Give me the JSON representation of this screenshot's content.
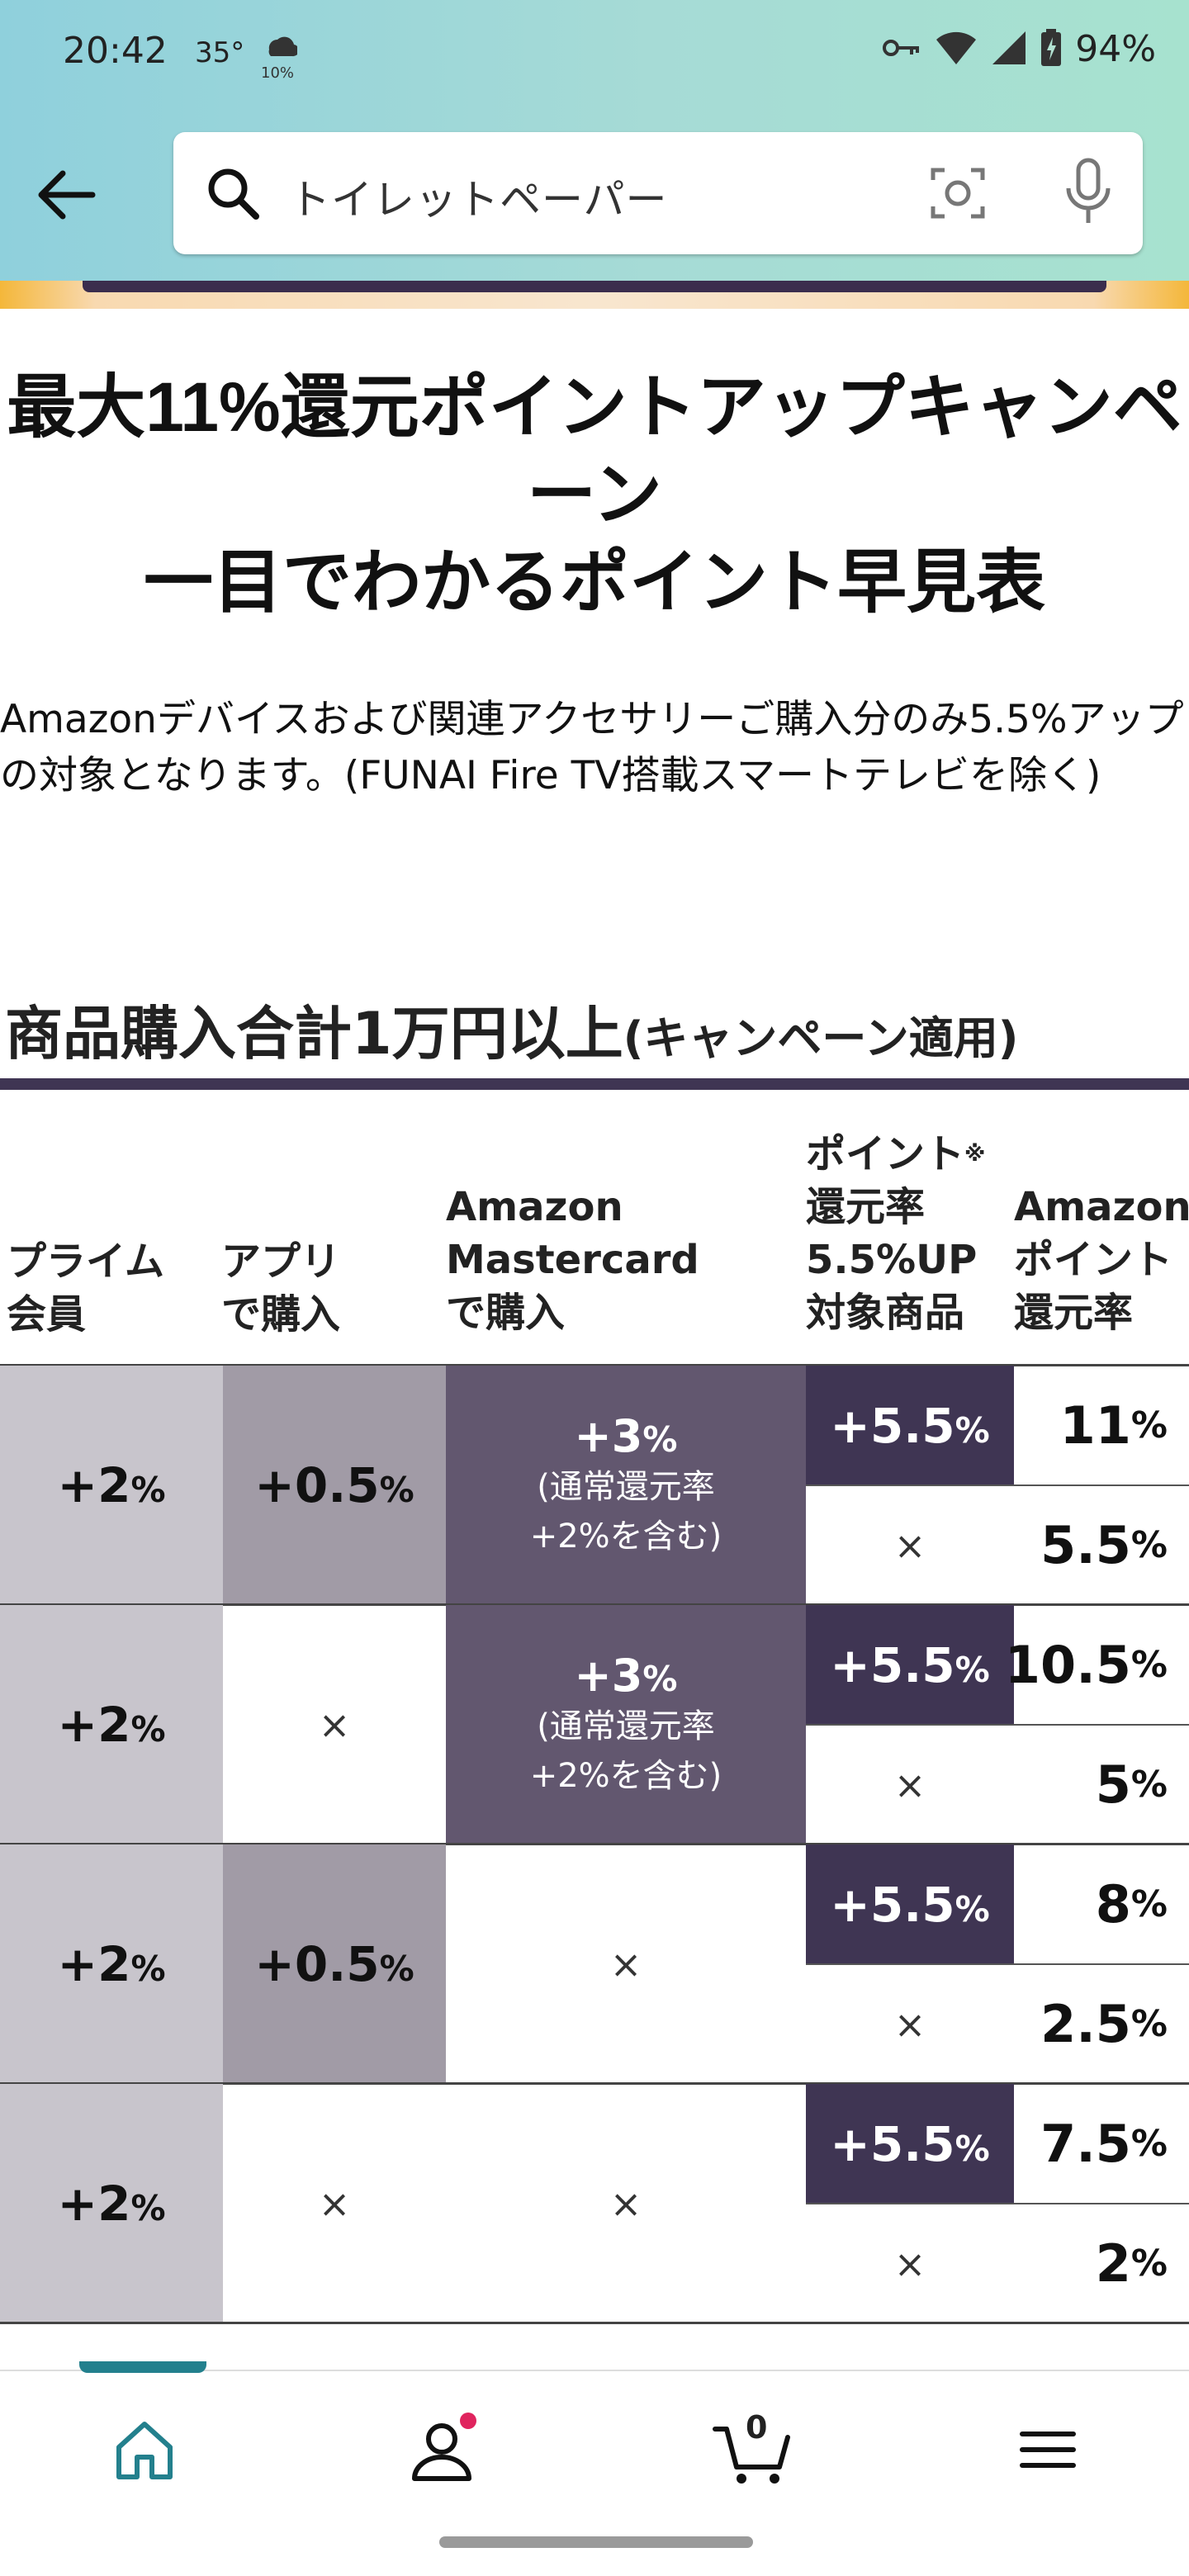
{
  "status_bar": {
    "time": "20:42",
    "temperature": "35°",
    "weather_value": "10%",
    "battery": "94%"
  },
  "search": {
    "query": "トイレットペーパー"
  },
  "campaign": {
    "title_line1": "最大11%還元ポイントアップキャンペ",
    "title_line2": "ーン",
    "title_line3": "一目でわかるポイント早見表",
    "note": "Amazonデバイスおよび関連アクセサリーご購入分のみ5.5%アップの対象となります。(FUNAI Fire TV搭載スマートテレビを除く)"
  },
  "section": {
    "heading": "商品購入合計1万円以上",
    "heading_sub": "(キャンペーン適用)"
  },
  "table": {
    "headers": {
      "prime": [
        "プライム",
        "会員"
      ],
      "app": [
        "アプリ",
        "で購入"
      ],
      "mastercard": [
        "Amazon",
        "Mastercard",
        "で購入"
      ],
      "target": [
        "ポイント",
        "還元率",
        "5.5%UP",
        "対象商品"
      ],
      "target_mark": "※",
      "rate": [
        "Amazon",
        "ポイント",
        "還元率"
      ]
    },
    "cross": "×",
    "pct": "%",
    "rows": [
      {
        "prime": "+2",
        "app": "+0.5",
        "mc": "+3",
        "mc_note1": "(通常還元率",
        "mc_note2": "+2%を含む)",
        "up": "+5.5",
        "rate_up": "11",
        "rate_no": "5.5"
      },
      {
        "prime": "+2",
        "app": "×",
        "mc": "+3",
        "mc_note1": "(通常還元率",
        "mc_note2": "+2%を含む)",
        "up": "+5.5",
        "rate_up": "10.5",
        "rate_no": "5"
      },
      {
        "prime": "+2",
        "app": "+0.5",
        "mc": "×",
        "up": "+5.5",
        "rate_up": "8",
        "rate_no": "2.5"
      },
      {
        "prime": "+2",
        "app": "×",
        "mc": "×",
        "up": "+5.5",
        "rate_up": "7.5",
        "rate_no": "2"
      }
    ]
  },
  "bottom_nav": {
    "cart_count": "0",
    "active": "home",
    "accent": "#23808d",
    "notification_color": "#e0245e"
  },
  "colors": {
    "dark_purple": "#3f3553",
    "mid_purple": "#62576f",
    "app_gray": "#a19ba6",
    "prime_gray": "#c8c5cc"
  }
}
